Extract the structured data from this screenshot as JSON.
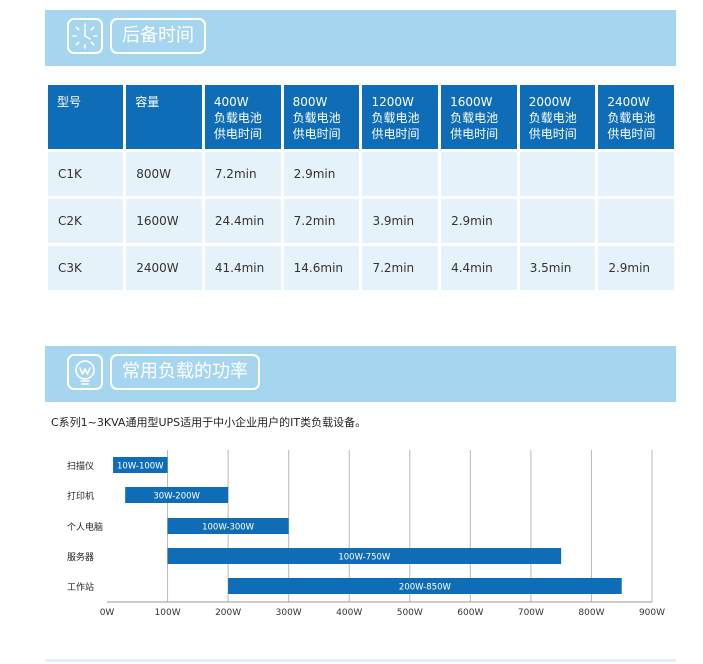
{
  "section1": {
    "title": "后备时间",
    "icon": "clock-icon"
  },
  "table": {
    "headers": [
      [
        "型号"
      ],
      [
        "容量"
      ],
      [
        "400W",
        "负载电池",
        "供电时间"
      ],
      [
        "800W",
        "负载电池",
        "供电时间"
      ],
      [
        "1200W",
        "负载电池",
        "供电时间"
      ],
      [
        "1600W",
        "负载电池",
        "供电时间"
      ],
      [
        "2000W",
        "负载电池",
        "供电时间"
      ],
      [
        "2400W",
        "负载电池",
        "供电时间"
      ]
    ],
    "rows": [
      [
        "C1K",
        "800W",
        "7.2min",
        "2.9min",
        "",
        "",
        "",
        ""
      ],
      [
        "C2K",
        "1600W",
        "24.4min",
        "7.2min",
        "3.9min",
        "2.9min",
        "",
        ""
      ],
      [
        "C3K",
        "2400W",
        "41.4min",
        "14.6min",
        "7.2min",
        "4.4min",
        "3.5min",
        "2.9min"
      ]
    ]
  },
  "section2": {
    "title": "常用负载的功率",
    "icon": "lightbulb-icon"
  },
  "description": "C系列1~3KVA通用型UPS适用于中小企业用户的IT类负载设备。",
  "chart_data": {
    "type": "bar",
    "orientation": "horizontal-range",
    "categories": [
      "扫描仪",
      "打印机",
      "个人电脑",
      "服务器",
      "工作站"
    ],
    "ranges": [
      [
        10,
        100
      ],
      [
        30,
        200
      ],
      [
        100,
        300
      ],
      [
        100,
        750
      ],
      [
        200,
        850
      ]
    ],
    "bar_labels": [
      "10W-100W",
      "30W-200W",
      "100W-300W",
      "100W-750W",
      "200W-850W"
    ],
    "x_ticks": [
      "0W",
      "100W",
      "200W",
      "300W",
      "400W",
      "500W",
      "600W",
      "700W",
      "800W",
      "900W"
    ],
    "xlim": [
      0,
      900
    ],
    "grid": true,
    "bar_color": "#0f6db7",
    "grid_color": "#b8b8b8"
  }
}
